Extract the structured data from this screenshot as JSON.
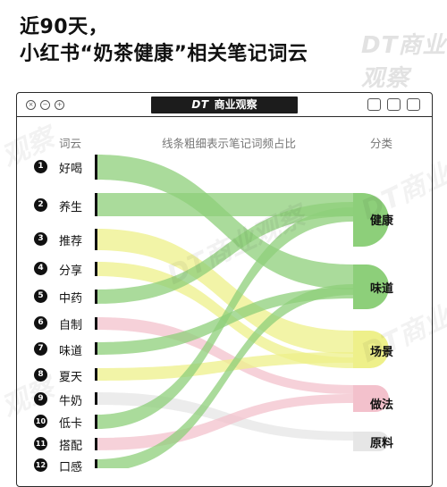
{
  "title": {
    "line1": "近90天，",
    "line2": "小红书“奶茶健康”相关笔记词云"
  },
  "brand": {
    "logo_text": "DT商业观察",
    "window_tab_dt": "DT",
    "window_tab_name": "商业观察"
  },
  "headers": {
    "words": "词云",
    "flows": "线条粗细表示笔记词频占比",
    "categories": "分类"
  },
  "words": [
    {
      "num": "1",
      "label": "好喝"
    },
    {
      "num": "2",
      "label": "养生"
    },
    {
      "num": "3",
      "label": "推荐"
    },
    {
      "num": "4",
      "label": "分享"
    },
    {
      "num": "5",
      "label": "中药"
    },
    {
      "num": "6",
      "label": "自制"
    },
    {
      "num": "7",
      "label": "味道"
    },
    {
      "num": "8",
      "label": "夏天"
    },
    {
      "num": "9",
      "label": "牛奶"
    },
    {
      "num": "10",
      "label": "低卡"
    },
    {
      "num": "11",
      "label": "搭配"
    },
    {
      "num": "12",
      "label": "口感"
    }
  ],
  "categories": [
    {
      "label": "健康",
      "color": "#8dcf7a"
    },
    {
      "label": "味道",
      "color": "#8dcf7a"
    },
    {
      "label": "场景",
      "color": "#eef08a"
    },
    {
      "label": "做法",
      "color": "#f3c1cc"
    },
    {
      "label": "原料",
      "color": "#e6e6e6"
    }
  ],
  "flow_colors": {
    "健康": "#8dcf7a",
    "味道": "#8dcf7a",
    "场景": "#eef08a",
    "做法": "#f3c1cc",
    "原料": "#e6e6e6"
  }
}
